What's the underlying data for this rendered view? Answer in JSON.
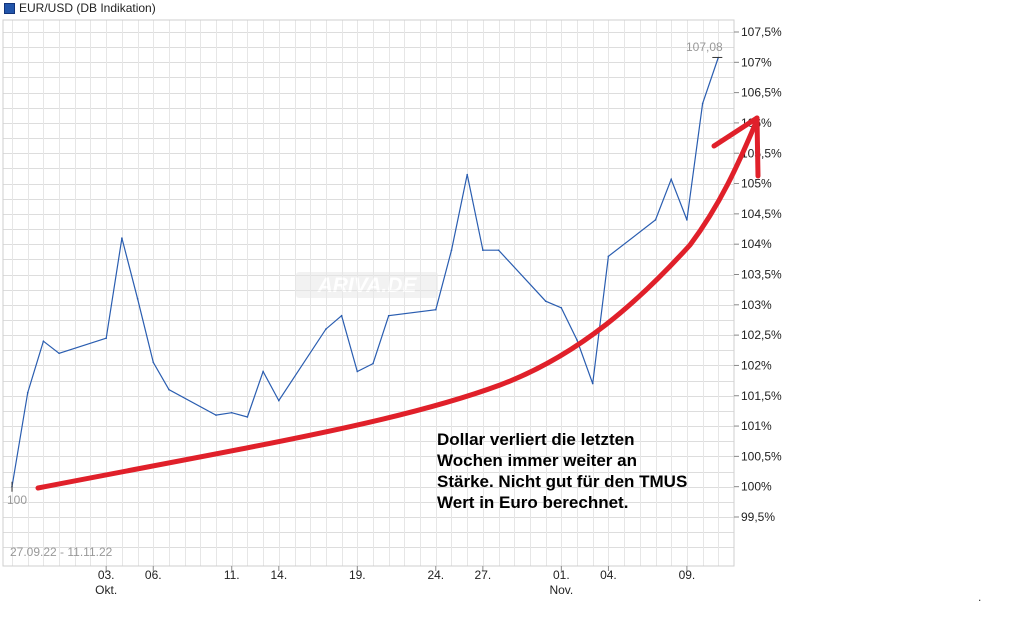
{
  "chart_data": {
    "type": "line",
    "legend": "EUR/USD (DB Indikation)",
    "date_range": "27.09.22 - 11.11.22",
    "watermark": "ARIVA.DE",
    "start_label": "100",
    "end_label": "107,08",
    "colors": {
      "line": "#2a5db0",
      "arrow": "#e0202a",
      "grid": "#dddddd"
    },
    "ylim": [
      99.0,
      107.75
    ],
    "yticks": [
      {
        "value": 99.5,
        "label": "99,5%"
      },
      {
        "value": 100.0,
        "label": "100%"
      },
      {
        "value": 100.5,
        "label": "100,5%"
      },
      {
        "value": 101.0,
        "label": "101%"
      },
      {
        "value": 101.5,
        "label": "101,5%"
      },
      {
        "value": 102.0,
        "label": "102%"
      },
      {
        "value": 102.5,
        "label": "102,5%"
      },
      {
        "value": 103.0,
        "label": "103%"
      },
      {
        "value": 103.5,
        "label": "103,5%"
      },
      {
        "value": 104.0,
        "label": "104%"
      },
      {
        "value": 104.5,
        "label": "104,5%"
      },
      {
        "value": 105.0,
        "label": "105%"
      },
      {
        "value": 105.5,
        "label": "105,5%"
      },
      {
        "value": 106.0,
        "label": "106%"
      },
      {
        "value": 106.5,
        "label": "106,5%"
      },
      {
        "value": 107.0,
        "label": "107%"
      },
      {
        "value": 107.5,
        "label": "107,5%"
      }
    ],
    "xlim": [
      "2022-09-27",
      "2022-11-12"
    ],
    "xticks": [
      {
        "date": "2022-10-03",
        "label": "03.",
        "sublabel": "Okt."
      },
      {
        "date": "2022-10-06",
        "label": "06.",
        "sublabel": ""
      },
      {
        "date": "2022-10-11",
        "label": "11.",
        "sublabel": ""
      },
      {
        "date": "2022-10-14",
        "label": "14.",
        "sublabel": ""
      },
      {
        "date": "2022-10-19",
        "label": "19.",
        "sublabel": ""
      },
      {
        "date": "2022-10-24",
        "label": "24.",
        "sublabel": ""
      },
      {
        "date": "2022-10-27",
        "label": "27.",
        "sublabel": ""
      },
      {
        "date": "2022-11-01",
        "label": "01.",
        "sublabel": "Nov."
      },
      {
        "date": "2022-11-04",
        "label": "04.",
        "sublabel": ""
      },
      {
        "date": "2022-11-09",
        "label": "09.",
        "sublabel": ""
      }
    ],
    "series": [
      {
        "x": [
          "2022-09-27",
          "2022-09-28",
          "2022-09-29",
          "2022-09-30",
          "2022-10-03",
          "2022-10-04",
          "2022-10-05",
          "2022-10-06",
          "2022-10-07",
          "2022-10-10",
          "2022-10-11",
          "2022-10-12",
          "2022-10-13",
          "2022-10-14",
          "2022-10-17",
          "2022-10-18",
          "2022-10-19",
          "2022-10-20",
          "2022-10-21",
          "2022-10-24",
          "2022-10-25",
          "2022-10-26",
          "2022-10-27",
          "2022-10-28",
          "2022-10-31",
          "2022-11-01",
          "2022-11-02",
          "2022-11-03",
          "2022-11-04",
          "2022-11-07",
          "2022-11-08",
          "2022-11-09",
          "2022-11-10",
          "2022-11-11"
        ],
        "values": [
          100.0,
          101.55,
          102.4,
          102.2,
          102.45,
          104.1,
          103.1,
          102.05,
          101.6,
          101.18,
          101.22,
          101.15,
          101.9,
          101.42,
          102.6,
          102.82,
          101.9,
          102.03,
          102.82,
          102.92,
          103.9,
          105.15,
          103.9,
          103.9,
          103.06,
          102.95,
          102.42,
          101.7,
          103.8,
          104.4,
          105.07,
          104.4,
          106.32,
          107.08
        ]
      }
    ],
    "annotation": [
      "Dollar verliert die letzten",
      "Wochen immer weiter an",
      "Stärke. Nicht gut für den TMUS",
      "Wert in Euro berechnet."
    ],
    "footnote": "."
  }
}
